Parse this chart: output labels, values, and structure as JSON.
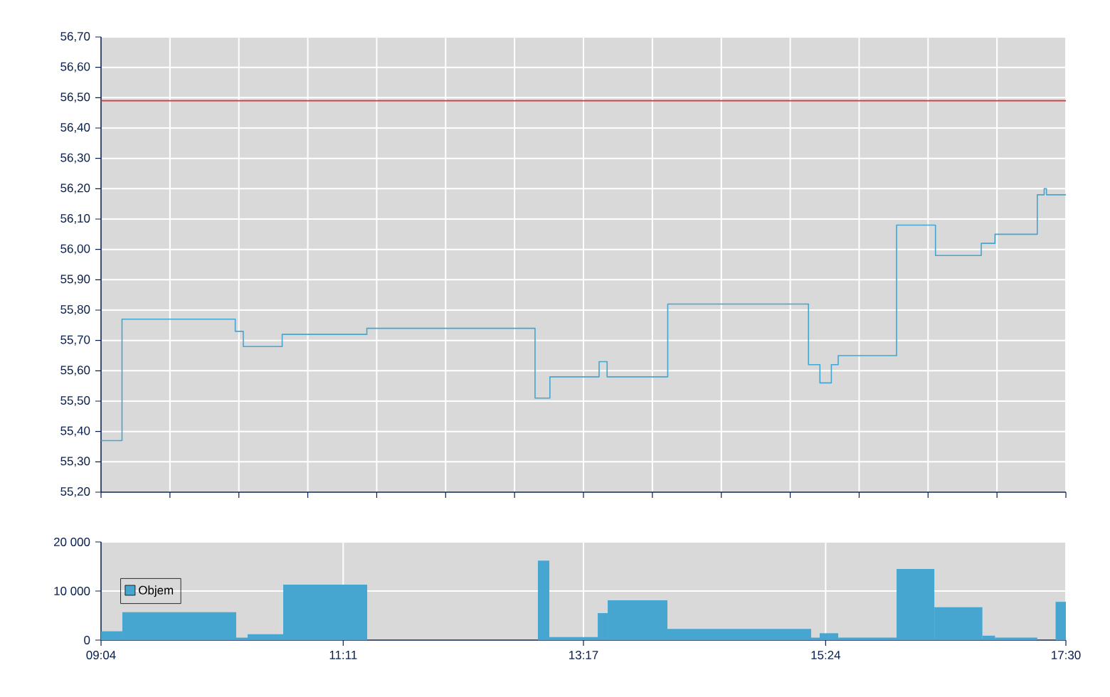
{
  "chart_data": [
    {
      "type": "step",
      "color": "#44a5d0",
      "xlim": [
        9.0667,
        17.5
      ],
      "ylim": [
        55.2,
        56.7
      ],
      "grid": true,
      "tick_labels": "y",
      "xticks": [
        {
          "value": 9.0667,
          "label": null
        },
        {
          "value": 9.669,
          "label": null
        },
        {
          "value": 10.2714,
          "label": null
        },
        {
          "value": 10.8738,
          "label": null
        },
        {
          "value": 11.4762,
          "label": null
        },
        {
          "value": 12.0786,
          "label": null
        },
        {
          "value": 12.681,
          "label": null
        },
        {
          "value": 13.2833,
          "label": null
        },
        {
          "value": 13.8857,
          "label": null
        },
        {
          "value": 14.4881,
          "label": null
        },
        {
          "value": 15.0905,
          "label": null
        },
        {
          "value": 15.6929,
          "label": null
        },
        {
          "value": 16.2952,
          "label": null
        },
        {
          "value": 16.8976,
          "label": null
        },
        {
          "value": 17.5,
          "label": null
        }
      ],
      "yticks": [
        {
          "value": 55.2,
          "label": "55,20"
        },
        {
          "value": 55.3,
          "label": "55,30"
        },
        {
          "value": 55.4,
          "label": "55,40"
        },
        {
          "value": 55.5,
          "label": "55,50"
        },
        {
          "value": 55.6,
          "label": "55,60"
        },
        {
          "value": 55.7,
          "label": "55,70"
        },
        {
          "value": 55.8,
          "label": "55,80"
        },
        {
          "value": 55.9,
          "label": "55,90"
        },
        {
          "value": 56.0,
          "label": "56,00"
        },
        {
          "value": 56.1,
          "label": "56,10"
        },
        {
          "value": 56.2,
          "label": "56,20"
        },
        {
          "value": 56.3,
          "label": "56,30"
        },
        {
          "value": 56.4,
          "label": "56,40"
        },
        {
          "value": 56.5,
          "label": "56,50"
        },
        {
          "value": 56.6,
          "label": "56,60"
        },
        {
          "value": 56.7,
          "label": "56,70"
        }
      ],
      "x": [
        9.067,
        9.25,
        10.24,
        10.31,
        10.65,
        11.39,
        12.86,
        12.99,
        13.42,
        13.49,
        14.02,
        15.25,
        15.35,
        15.45,
        15.51,
        16.02,
        16.36,
        16.76,
        16.88,
        17.25,
        17.31,
        17.33,
        17.5
      ],
      "values": [
        55.37,
        55.77,
        55.73,
        55.68,
        55.72,
        55.74,
        55.51,
        55.58,
        55.63,
        55.58,
        55.82,
        55.62,
        55.56,
        55.62,
        55.65,
        56.08,
        55.98,
        56.02,
        56.05,
        56.18,
        56.2,
        56.18,
        56.18
      ],
      "ref_lines": [
        {
          "axis": "y",
          "value": 56.49,
          "color": "#e03030"
        }
      ]
    },
    {
      "type": "histogram",
      "xlim": [
        9.0667,
        17.5
      ],
      "ylim": [
        0,
        20000
      ],
      "grid": true,
      "legend": "left",
      "xticks": [
        {
          "value": 9.0667,
          "label": "09:04"
        },
        {
          "value": 11.1833,
          "label": "11:11"
        },
        {
          "value": 13.2833,
          "label": "13:17"
        },
        {
          "value": 15.4,
          "label": "15:24"
        },
        {
          "value": 17.5,
          "label": "17:30"
        }
      ],
      "yticks": [
        0,
        {
          "value": 10000,
          "label": "10 000"
        },
        {
          "value": 20000,
          "label": "20 000"
        }
      ],
      "bins": [
        9.067,
        9.253,
        10.248,
        10.348,
        10.659,
        11.393,
        12.885,
        12.985,
        13.408,
        13.495,
        14.017,
        15.273,
        15.348,
        15.51,
        16.02,
        16.35,
        16.77,
        16.88,
        17.25,
        17.41,
        17.5
      ],
      "series": [
        {
          "name": "Objem",
          "color": "#46a6cf",
          "values": [
            1800,
            5700,
            500,
            1200,
            11300,
            0,
            16200,
            600,
            5500,
            8100,
            2300,
            500,
            1400,
            500,
            14500,
            6700,
            900,
            500,
            0,
            7800
          ]
        }
      ]
    }
  ]
}
